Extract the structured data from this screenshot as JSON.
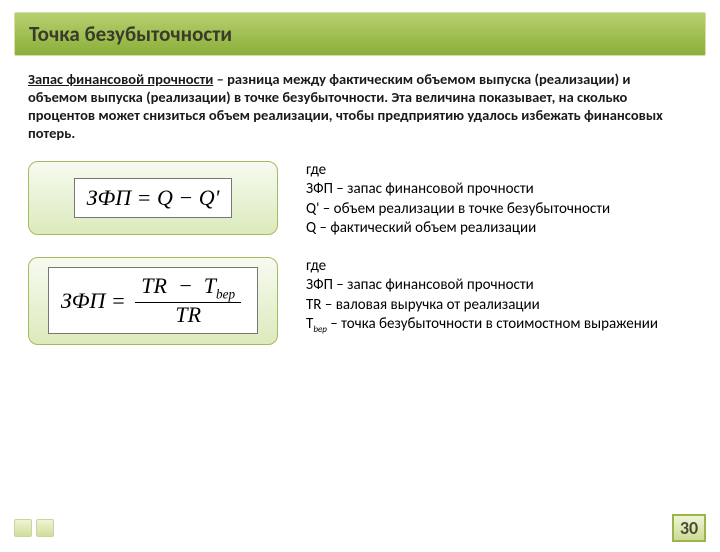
{
  "title": "Точка безубыточности",
  "intro_underlined": "Запас финансовой прочности",
  "intro_rest": " – разница между фактическим объемом выпуска (реализации) и объемом выпуска (реализации) в точке безубыточности. Эта величина показывает, на сколько процентов может снизиться объем реализации, чтобы предприятию удалось избежать финансовых потерь.",
  "formula1_lhs": "ЗФП",
  "formula1_rhs_a": "Q",
  "formula1_rhs_b": "Q'",
  "explain1_l1": "где",
  "explain1_l2": "ЗФП – запас финансовой прочности",
  "explain1_l3": "Q' – объем реализации в точке безубыточности",
  "explain1_l4": "Q – фактический объем реализации",
  "formula2_lhs": "ЗФП",
  "formula2_num_a": "TR",
  "formula2_num_b_base": "T",
  "formula2_num_b_sub": "bep",
  "formula2_den": "TR",
  "explain2_l1": "где",
  "explain2_l2": "ЗФП – запас финансовой прочности",
  "explain2_l3": "TR – валовая выручка от реализации",
  "explain2_l4_a": "T",
  "explain2_l4_sub": "bep",
  "explain2_l4_b": " – точка безубыточности в стоимостном выражении",
  "page_number": "30",
  "colors": {
    "title_grad_top": "#b8d070",
    "title_grad_bottom": "#8aaf3a",
    "box_border": "#a8b860",
    "box_grad_top": "#f6fbf0",
    "box_grad_bottom": "#dceabc"
  }
}
